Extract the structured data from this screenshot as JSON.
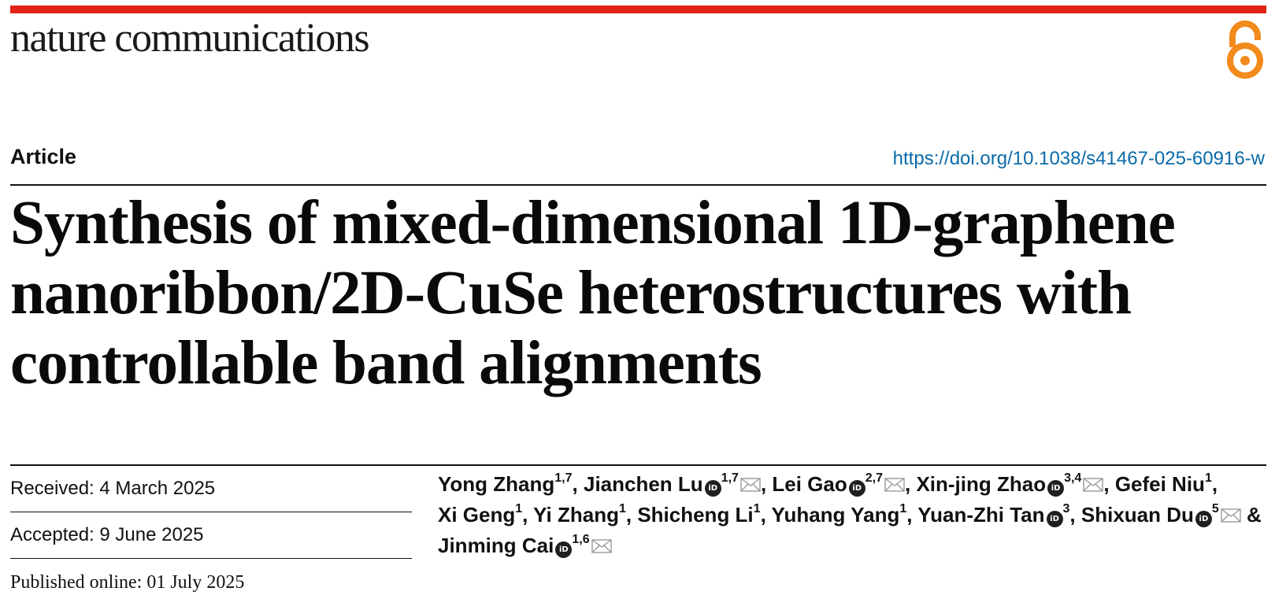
{
  "header": {
    "journal_name": "nature communications",
    "accent_color": "#e2231a",
    "open_access_icon": "open-access-lock-icon",
    "open_access_color": "#f28a1c"
  },
  "article": {
    "type": "Article",
    "doi": "https://doi.org/10.1038/s41467-025-60916-w",
    "doi_color": "#0b6aa8",
    "title": "Synthesis of mixed-dimensional 1D-graphene nanoribbon/2D-CuSe heterostructures with controllable band alignments"
  },
  "dates": {
    "received": "Received: 4 March 2025",
    "accepted": "Accepted: 9 June 2025",
    "published": "Published online: 01 July 2025"
  },
  "authors": [
    {
      "name": "Yong Zhang",
      "aff": "1,7",
      "orcid": false,
      "mail": false,
      "sep": ", "
    },
    {
      "name": "Jianchen Lu",
      "aff": "1,7",
      "orcid": true,
      "mail": true,
      "sep": ", "
    },
    {
      "name": "Lei Gao",
      "aff": "2,7",
      "orcid": true,
      "mail": true,
      "sep": ", "
    },
    {
      "name": "Xin-jing Zhao",
      "aff": "3,4",
      "orcid": true,
      "mail": true,
      "sep": ", "
    },
    {
      "name": "Gefei Niu",
      "aff": "1",
      "orcid": false,
      "mail": false,
      "sep": ", "
    },
    {
      "name": "Xi Geng",
      "aff": "1",
      "orcid": false,
      "mail": false,
      "sep": ", "
    },
    {
      "name": "Yi Zhang",
      "aff": "1",
      "orcid": false,
      "mail": false,
      "sep": ", "
    },
    {
      "name": "Shicheng Li",
      "aff": "1",
      "orcid": false,
      "mail": false,
      "sep": ", "
    },
    {
      "name": "Yuhang Yang",
      "aff": "1",
      "orcid": false,
      "mail": false,
      "sep": ", "
    },
    {
      "name": "Yuan-Zhi Tan",
      "aff": "3",
      "orcid": true,
      "mail": false,
      "sep": ", "
    },
    {
      "name": "Shixuan Du",
      "aff": "5",
      "orcid": true,
      "mail": true,
      "sep": " & "
    },
    {
      "name": "Jinming Cai",
      "aff": "1,6",
      "orcid": true,
      "mail": true,
      "sep": ""
    }
  ]
}
